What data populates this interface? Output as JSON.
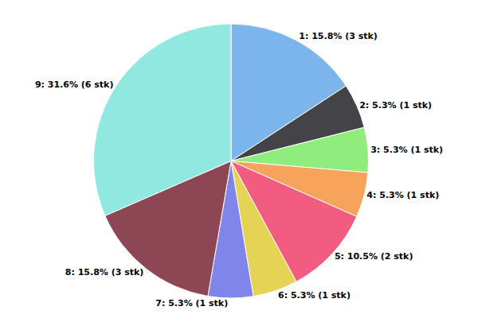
{
  "chart_data": {
    "type": "pie",
    "categories": [
      "1",
      "2",
      "3",
      "4",
      "5",
      "6",
      "7",
      "8",
      "9"
    ],
    "values": [
      15.8,
      5.3,
      5.3,
      5.3,
      10.5,
      5.3,
      5.3,
      15.8,
      31.6
    ],
    "value_labels": [
      "1: 15.8% (3 stk)",
      "2: 5.3% (1 stk)",
      "3: 5.3% (1 stk)",
      "4: 5.3% (1 stk)",
      "5: 10.5% (2 stk)",
      "6: 5.3% (1 stk)",
      "7: 5.3% (1 stk)",
      "8: 15.8% (3 stk)",
      "9: 31.6% (6 stk)"
    ],
    "colors": [
      "#7cb5ec",
      "#434348",
      "#90ed7d",
      "#f7a35c",
      "#f15c80",
      "#e4d354",
      "#8085e9",
      "#8d4653",
      "#91e8e1"
    ],
    "data_labels": true
  }
}
